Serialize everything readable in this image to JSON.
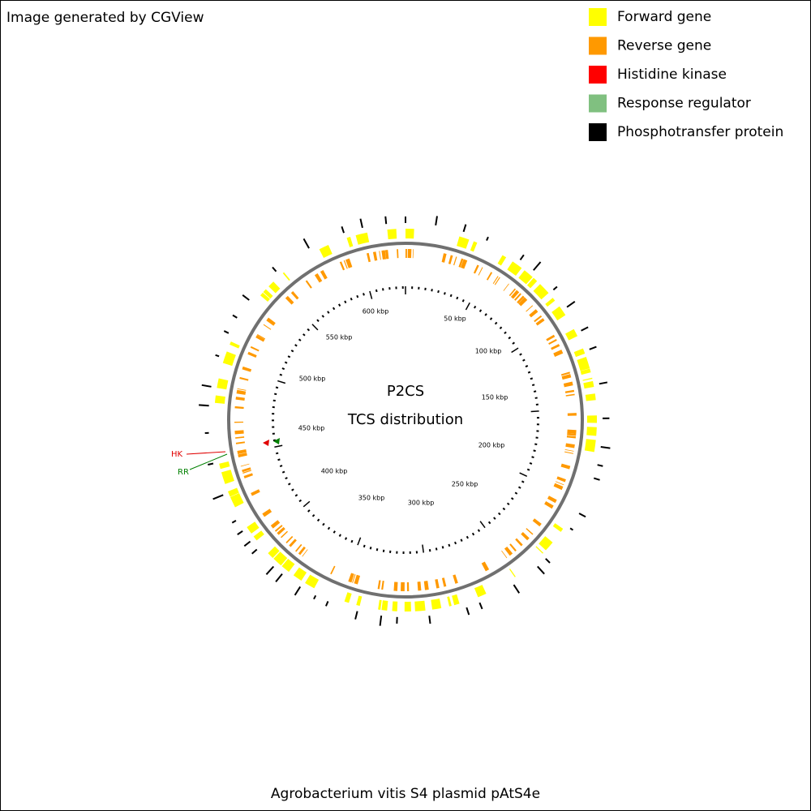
{
  "header": {
    "credit": "Image generated by CGView"
  },
  "legend": [
    {
      "label": "Forward gene",
      "color": "#ffff00"
    },
    {
      "label": "Reverse gene",
      "color": "#ff9900"
    },
    {
      "label": "Histidine kinase",
      "color": "#ff0000"
    },
    {
      "label": "Response regulator",
      "color": "#80c080"
    },
    {
      "label": "Phosphotransfer protein",
      "color": "#000000"
    }
  ],
  "center": {
    "title": "P2CS",
    "subtitle": "TCS distribution"
  },
  "scale_labels": [
    "50 kbp",
    "100 kbp",
    "150 kbp",
    "200 kbp",
    "250 kbp",
    "300 kbp",
    "350 kbp",
    "400 kbp",
    "450 kbp",
    "500 kbp",
    "550 kbp",
    "600 kbp"
  ],
  "markers": [
    {
      "label": "HK",
      "color": "#e00000"
    },
    {
      "label": "RR",
      "color": "#008000"
    }
  ],
  "footer": {
    "title": "Agrobacterium vitis S4 plasmid pAtS4e"
  }
}
